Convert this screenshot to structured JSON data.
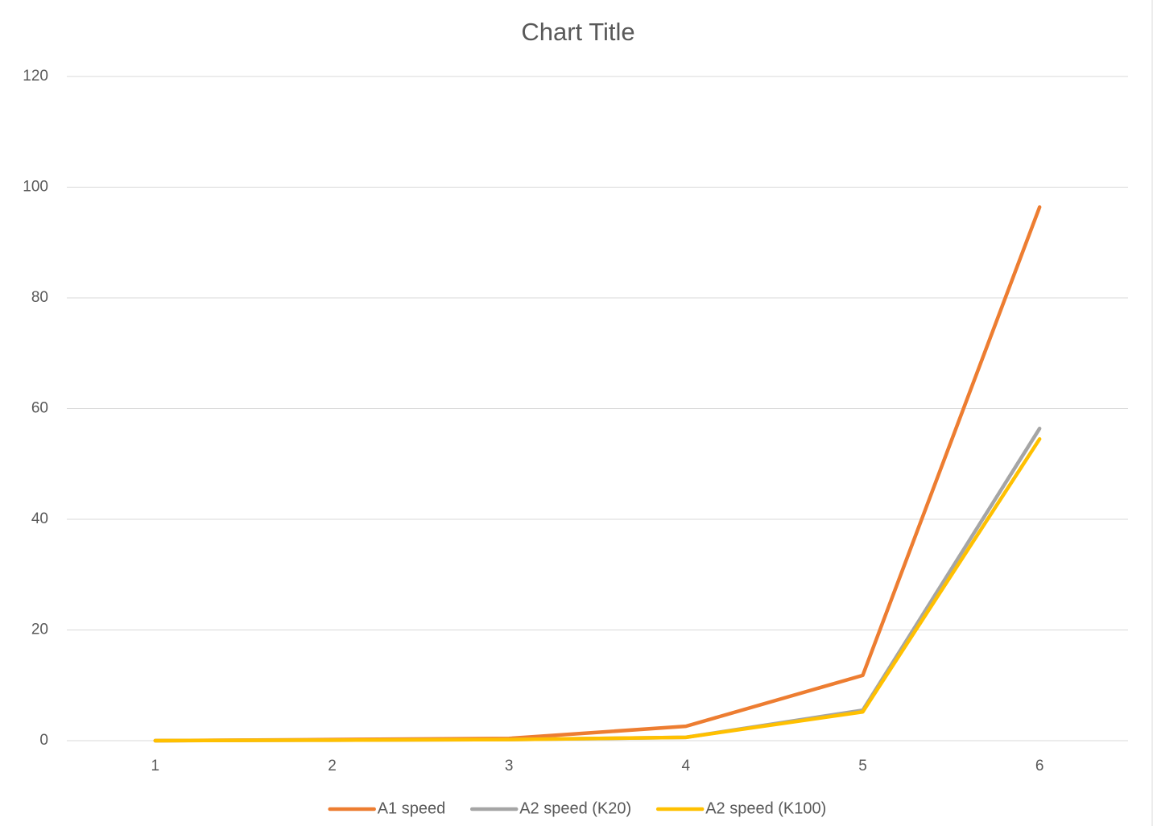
{
  "chart_data": {
    "type": "line",
    "title": "Chart Title",
    "categories": [
      "1",
      "2",
      "3",
      "4",
      "5",
      "6"
    ],
    "series": [
      {
        "name": "A1 speed",
        "color": "#ed7d31",
        "values": [
          0,
          0.2,
          0.4,
          2.6,
          11.8,
          96.4
        ]
      },
      {
        "name": "A2 speed (K20)",
        "color": "#a5a5a5",
        "values": [
          0,
          0.1,
          0.2,
          0.6,
          5.5,
          56.4
        ]
      },
      {
        "name": "A2 speed (K100)",
        "color": "#ffc000",
        "values": [
          0,
          0.1,
          0.2,
          0.6,
          5.2,
          54.5
        ]
      }
    ],
    "ylim": [
      0,
      120
    ],
    "yticks": [
      0,
      20,
      40,
      60,
      80,
      100,
      120
    ],
    "grid": true,
    "legend": "bottom"
  }
}
